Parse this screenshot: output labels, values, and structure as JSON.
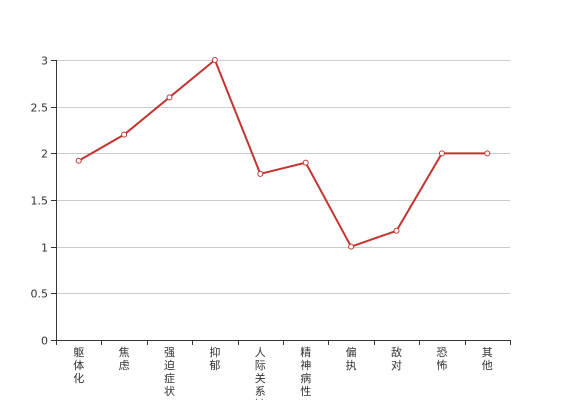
{
  "chart_data": {
    "type": "line",
    "categories": [
      "躯体化",
      "焦虑",
      "强迫症状",
      "抑郁",
      "人际关系敏感",
      "精神病性",
      "偏执",
      "敌对",
      "恐怖",
      "其他"
    ],
    "series": [
      {
        "values": [
          1.92,
          2.2,
          2.6,
          3.0,
          1.78,
          1.9,
          1.0,
          1.17,
          2.0,
          2.0
        ]
      }
    ],
    "yticks": [
      "0",
      "0.5",
      "1",
      "1.5",
      "2",
      "2.5",
      "3"
    ],
    "ylim": [
      0,
      3
    ],
    "grid": true,
    "colors": {
      "series": "#c23531",
      "grid": "#cccccc",
      "axis": "#333333"
    }
  }
}
